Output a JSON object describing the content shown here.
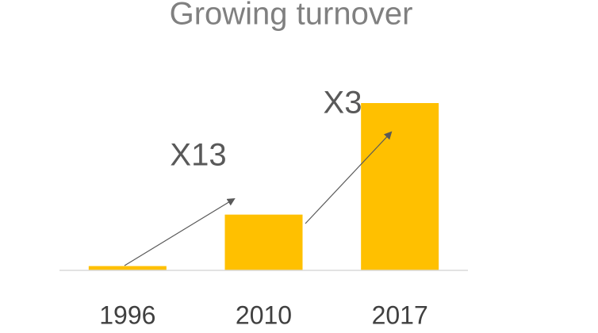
{
  "chart_data": {
    "type": "bar",
    "title": "Growing turnover",
    "categories": [
      "1996",
      "2010",
      "2017"
    ],
    "values": [
      1,
      13,
      39
    ],
    "color": "#ffc000",
    "ylim": [
      0,
      39
    ],
    "annotations": [
      "X13",
      "X3"
    ]
  }
}
